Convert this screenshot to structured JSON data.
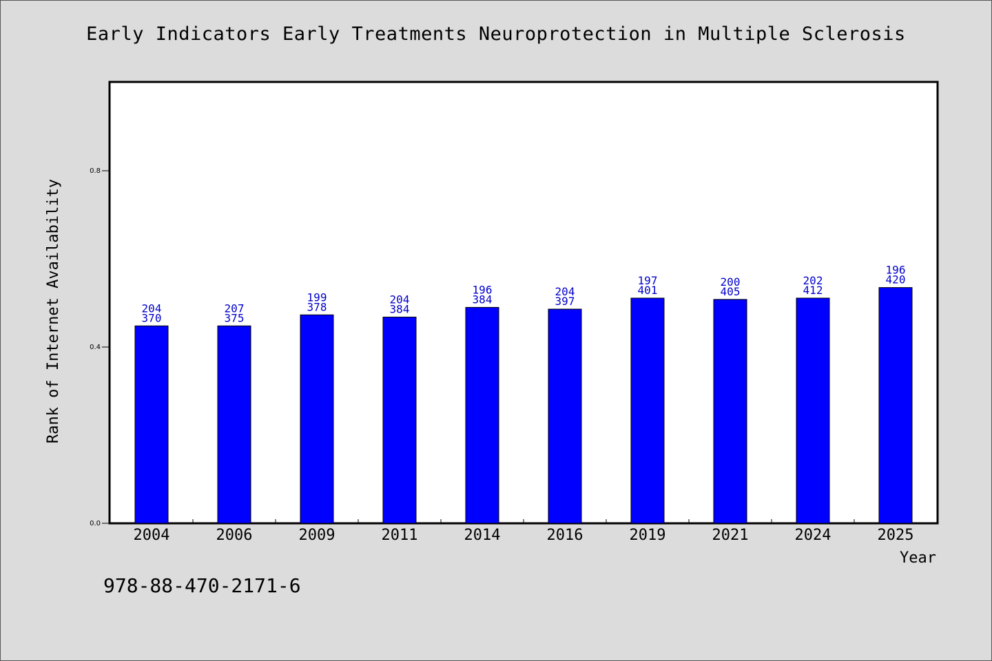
{
  "chart_data": {
    "type": "bar",
    "title": "Early Indicators Early Treatments Neuroprotection in Multiple Sclerosis",
    "xlabel": "Year",
    "ylabel": "Rank of Internet Availability",
    "ylim": [
      0,
      1.0
    ],
    "yticks": [
      "0.0",
      "0.4",
      "0.8"
    ],
    "ytick_values": [
      0.0,
      0.4,
      0.8
    ],
    "grid": false,
    "categories": [
      "2004",
      "2006",
      "2009",
      "2011",
      "2014",
      "2016",
      "2019",
      "2021",
      "2024",
      "2025"
    ],
    "values": [
      0.448,
      0.448,
      0.473,
      0.468,
      0.49,
      0.486,
      0.511,
      0.508,
      0.511,
      0.535
    ],
    "labels_top": [
      "204",
      "207",
      "199",
      "204",
      "196",
      "204",
      "197",
      "200",
      "202",
      "196"
    ],
    "labels_bottom": [
      "370",
      "375",
      "378",
      "384",
      "384",
      "397",
      "401",
      "405",
      "412",
      "420"
    ],
    "bar_color": "#0000ff",
    "label_color": "#0000cc"
  },
  "footer": {
    "isbn": "978-88-470-2171-6"
  }
}
